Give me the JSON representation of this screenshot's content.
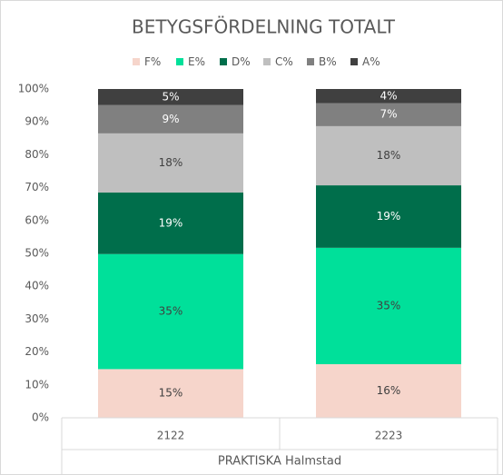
{
  "chart_data": {
    "type": "stacked_bar",
    "title": "BETYGSFÖRDELNING TOTALT",
    "categories": [
      "2122",
      "2223"
    ],
    "group_label": "PRAKTISKA Halmstad",
    "series": [
      {
        "name": "F%",
        "color": "#f6d5cb",
        "values": [
          14.8,
          16.3
        ],
        "value_labels": [
          "15%",
          "16%"
        ]
      },
      {
        "name": "E%",
        "color": "#00e09a",
        "values": [
          35.0,
          35.4
        ],
        "value_labels": [
          "35%",
          "35%"
        ]
      },
      {
        "name": "D%",
        "color": "#006e4b",
        "values": [
          18.7,
          19.0
        ],
        "value_labels": [
          "19%",
          "19%"
        ]
      },
      {
        "name": "C%",
        "color": "#bfbfbf",
        "values": [
          18.0,
          18.0
        ],
        "value_labels": [
          "18%",
          "18%"
        ]
      },
      {
        "name": "B%",
        "color": "#808080",
        "values": [
          8.6,
          7.0
        ],
        "value_labels": [
          "9%",
          "7%"
        ]
      },
      {
        "name": "A%",
        "color": "#404040",
        "values": [
          4.9,
          4.3
        ],
        "value_labels": [
          "5%",
          "4%"
        ]
      }
    ],
    "ylim": [
      0,
      100
    ],
    "yticks": [
      {
        "value": 0,
        "label": "0%"
      },
      {
        "value": 10,
        "label": "10%"
      },
      {
        "value": 20,
        "label": "20%"
      },
      {
        "value": 30,
        "label": "30%"
      },
      {
        "value": 40,
        "label": "40%"
      },
      {
        "value": 50,
        "label": "50%"
      },
      {
        "value": 60,
        "label": "60%"
      },
      {
        "value": 70,
        "label": "70%"
      },
      {
        "value": 80,
        "label": "80%"
      },
      {
        "value": 90,
        "label": "90%"
      },
      {
        "value": 100,
        "label": "100%"
      }
    ],
    "legend": "top"
  }
}
